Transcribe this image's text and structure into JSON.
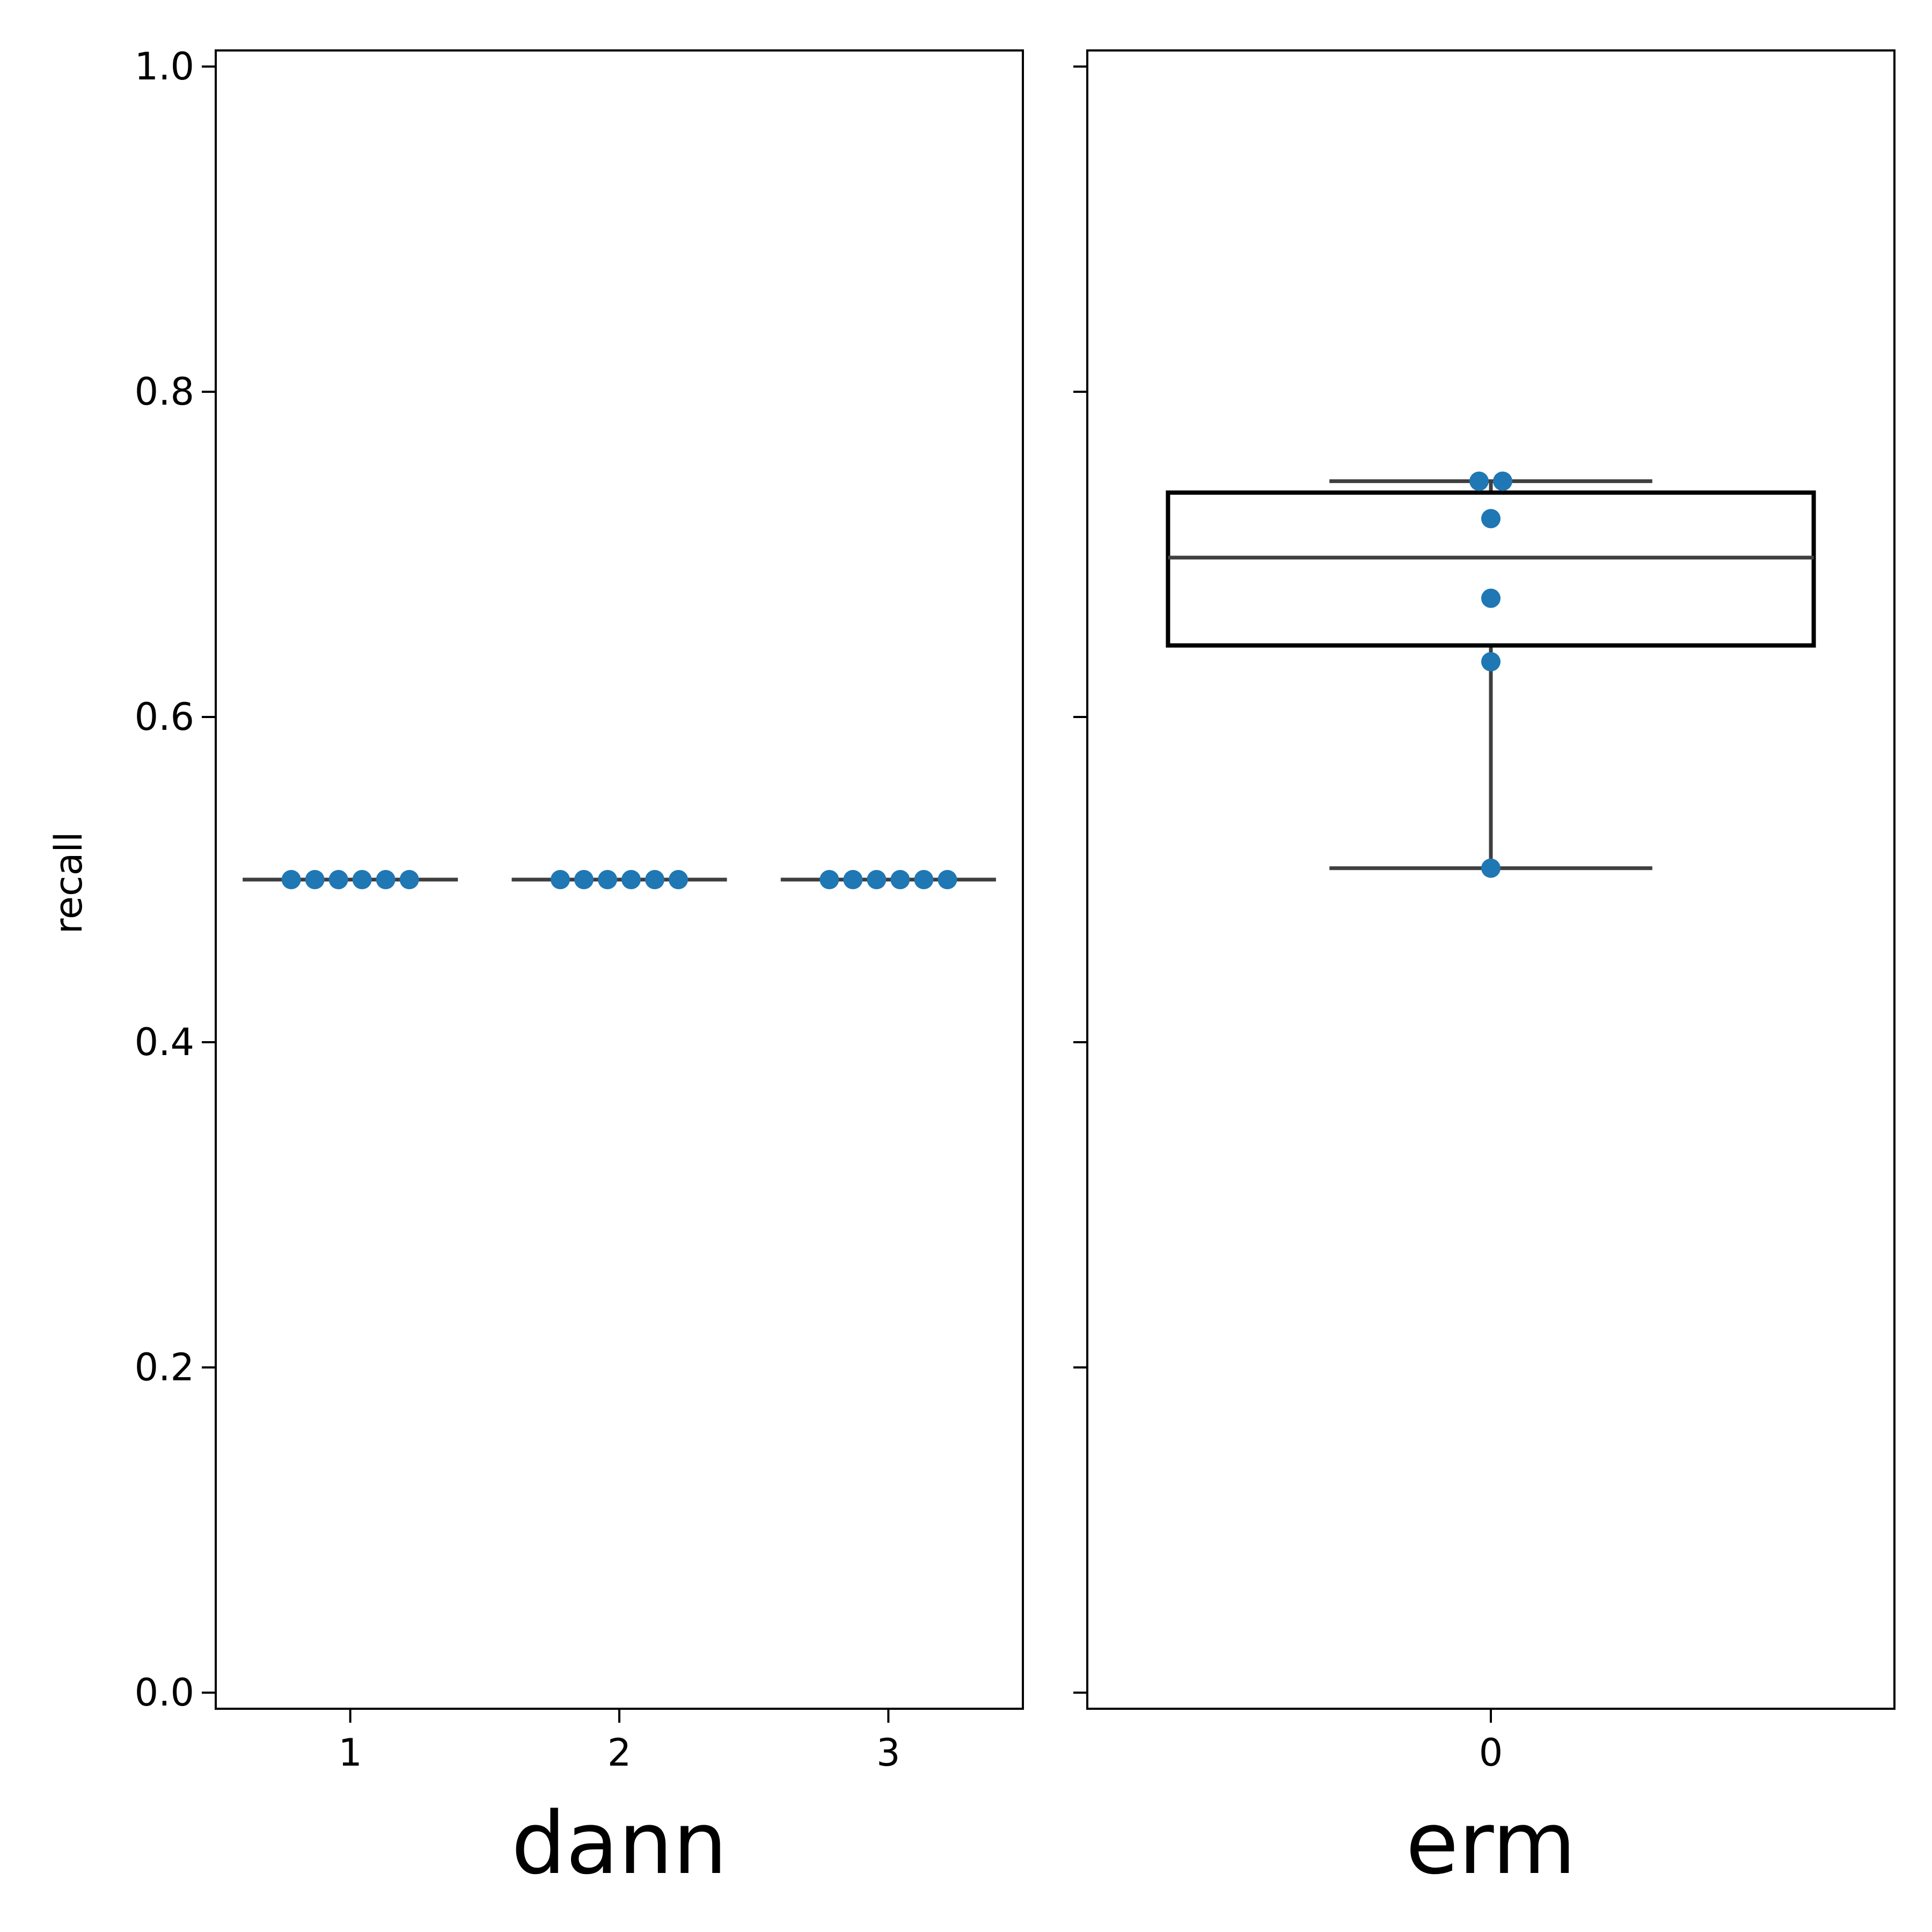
{
  "chart_data": {
    "type": "box",
    "ylabel": "recall",
    "ylim": [
      0,
      1
    ],
    "yticks": [
      "0.0",
      "0.2",
      "0.4",
      "0.6",
      "0.8",
      "1.0"
    ],
    "grid": false,
    "colors": {
      "points": "#1f77b4",
      "box_line": "#3f3f3f",
      "box_edge": "#000000"
    },
    "panels": [
      {
        "xlabel": "dann",
        "categories": [
          "1",
          "2",
          "3"
        ],
        "groups": [
          {
            "category": "1",
            "values": [
              0.5,
              0.5,
              0.5,
              0.5,
              0.5,
              0.5
            ],
            "q1": 0.5,
            "median": 0.5,
            "q3": 0.5,
            "whisker_low": 0.5,
            "whisker_high": 0.5
          },
          {
            "category": "2",
            "values": [
              0.5,
              0.5,
              0.5,
              0.5,
              0.5,
              0.5
            ],
            "q1": 0.5,
            "median": 0.5,
            "q3": 0.5,
            "whisker_low": 0.5,
            "whisker_high": 0.5
          },
          {
            "category": "3",
            "values": [
              0.5,
              0.5,
              0.5,
              0.5,
              0.5,
              0.5
            ],
            "q1": 0.5,
            "median": 0.5,
            "q3": 0.5,
            "whisker_low": 0.5,
            "whisker_high": 0.5
          }
        ]
      },
      {
        "xlabel": "erm",
        "categories": [
          "0"
        ],
        "groups": [
          {
            "category": "0",
            "values": [
              0.745,
              0.745,
              0.722,
              0.673,
              0.634,
              0.507
            ],
            "q1": 0.644,
            "median": 0.698,
            "q3": 0.738,
            "whisker_low": 0.507,
            "whisker_high": 0.745
          }
        ]
      }
    ]
  }
}
